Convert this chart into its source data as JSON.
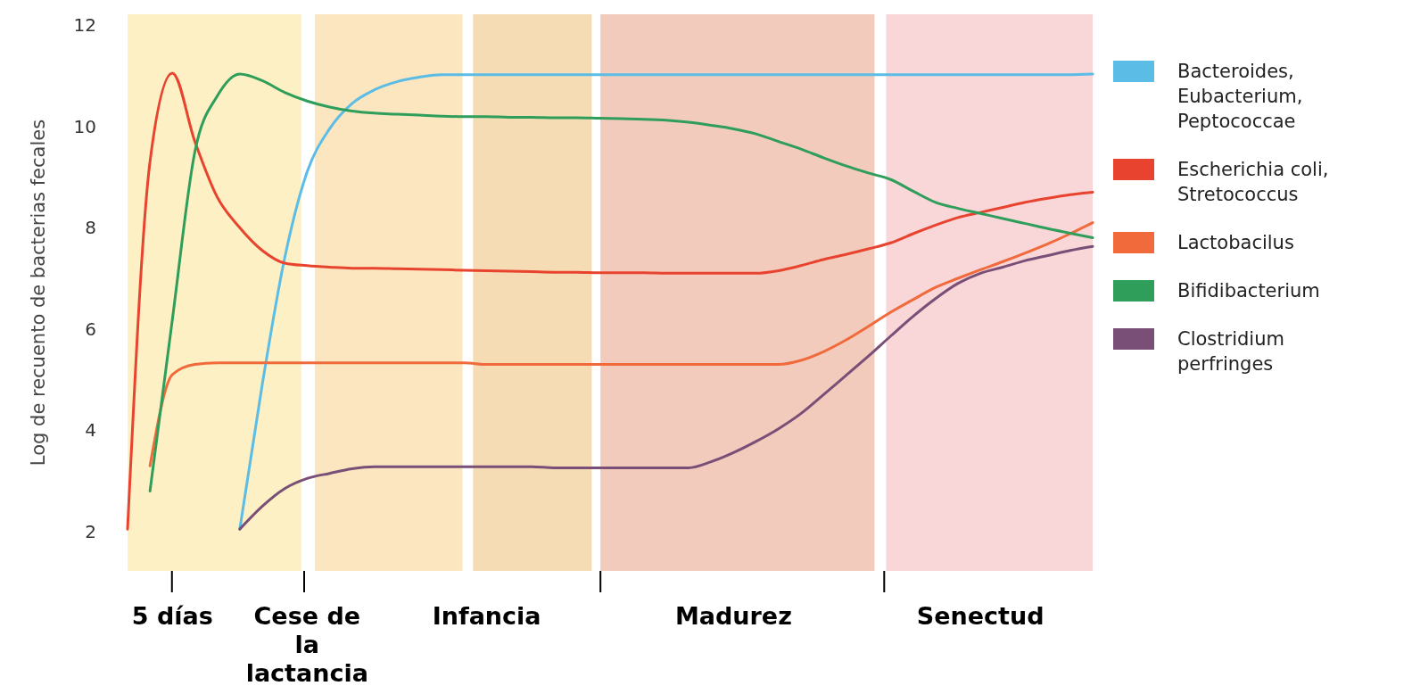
{
  "chart_data": {
    "type": "line",
    "ylabel": "Log de recuento de bacterias fecales",
    "categories": [
      null,
      null,
      "5 días",
      null,
      null,
      null,
      null,
      null,
      "Cese de la lactancia",
      null,
      null,
      null,
      null,
      null,
      null,
      null,
      "Infancia",
      null,
      null,
      null,
      null,
      null,
      null,
      null,
      null,
      null,
      null,
      "Madurez",
      null,
      null,
      null,
      null,
      null,
      null,
      null,
      null,
      null,
      null,
      "Senectud",
      null,
      null,
      null,
      null,
      null
    ],
    "ylim": [
      2,
      12
    ],
    "yticks": [
      2,
      4,
      6,
      8,
      10,
      12
    ],
    "legend": "right",
    "series": [
      {
        "name": "Bacteroides, Eubacterium, Peptococcae",
        "color": "#5bbde6",
        "values": [
          null,
          null,
          null,
          null,
          null,
          2.05,
          4.9,
          7.4,
          9.1,
          9.95,
          10.45,
          10.72,
          10.88,
          10.97,
          11.02,
          11.02,
          11.02,
          11.02,
          11.02,
          11.02,
          11.02,
          11.02,
          11.02,
          11.02,
          11.02,
          11.02,
          11.02,
          11.02,
          11.02,
          11.02,
          11.02,
          11.02,
          11.02,
          11.02,
          11.02,
          11.02,
          11.02,
          11.02,
          11.02,
          11.02,
          11.02,
          11.02,
          11.02,
          11.03
        ]
      },
      {
        "name": "Escherichia coli, Stretococcus",
        "color": "#e8432e",
        "values": [
          2.05,
          9.3,
          11.05,
          9.7,
          8.6,
          8.0,
          7.55,
          7.3,
          7.25,
          7.22,
          7.2,
          7.2,
          7.19,
          7.18,
          7.17,
          7.16,
          7.15,
          7.14,
          7.13,
          7.12,
          7.12,
          7.11,
          7.11,
          7.11,
          7.1,
          7.1,
          7.1,
          7.1,
          7.1,
          7.15,
          7.25,
          7.37,
          7.47,
          7.58,
          7.7,
          7.88,
          8.05,
          8.2,
          8.3,
          8.4,
          8.5,
          8.58,
          8.65,
          8.7
        ]
      },
      {
        "name": "Lactobacilus",
        "color": "#f06a3c",
        "values": [
          null,
          3.3,
          5.1,
          5.3,
          5.33,
          5.33,
          5.33,
          5.33,
          5.33,
          5.33,
          5.33,
          5.33,
          5.33,
          5.33,
          5.33,
          5.33,
          5.3,
          5.3,
          5.3,
          5.3,
          5.3,
          5.3,
          5.3,
          5.3,
          5.3,
          5.3,
          5.3,
          5.3,
          5.3,
          5.3,
          5.38,
          5.55,
          5.78,
          6.05,
          6.33,
          6.58,
          6.82,
          7.0,
          7.17,
          7.33,
          7.5,
          7.68,
          7.88,
          8.1
        ]
      },
      {
        "name": "Bifidibacterium",
        "color": "#2e9e5a",
        "values": [
          null,
          2.8,
          6.2,
          9.5,
          10.6,
          11.03,
          10.9,
          10.67,
          10.5,
          10.38,
          10.3,
          10.26,
          10.24,
          10.22,
          10.2,
          10.19,
          10.19,
          10.18,
          10.18,
          10.17,
          10.17,
          10.16,
          10.15,
          10.14,
          10.12,
          10.08,
          10.02,
          9.95,
          9.85,
          9.7,
          9.55,
          9.38,
          9.22,
          9.08,
          8.95,
          8.72,
          8.5,
          8.38,
          8.28,
          8.18,
          8.08,
          7.98,
          7.89,
          7.8
        ]
      },
      {
        "name": "Clostridium perfringes",
        "color": "#7a4f77",
        "values": [
          null,
          null,
          null,
          null,
          null,
          2.05,
          2.5,
          2.85,
          3.05,
          3.15,
          3.24,
          3.28,
          3.28,
          3.28,
          3.28,
          3.28,
          3.28,
          3.28,
          3.28,
          3.26,
          3.26,
          3.26,
          3.26,
          3.26,
          3.26,
          3.26,
          3.38,
          3.56,
          3.78,
          4.03,
          4.33,
          4.7,
          5.08,
          5.46,
          5.86,
          6.25,
          6.6,
          6.9,
          7.1,
          7.22,
          7.35,
          7.45,
          7.55,
          7.63
        ]
      }
    ]
  }
}
